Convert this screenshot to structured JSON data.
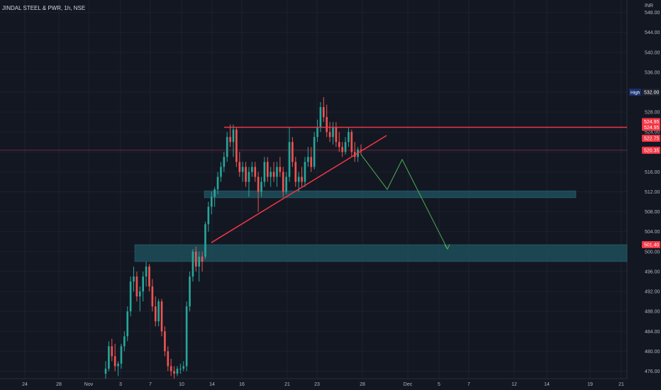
{
  "chart_data": {
    "type": "candlestick",
    "title": "JINDAL STEEL & PWR, 1h, NSE",
    "currency": "INR",
    "ylim": [
      474.5,
      550.5
    ],
    "y_ticks": [
      476,
      480,
      484,
      488,
      492,
      496,
      500,
      504,
      508,
      512,
      516,
      520,
      524,
      528,
      532,
      536,
      540,
      544,
      548
    ],
    "x_ticks": [
      "24",
      "28",
      "Nov",
      "3",
      "7",
      "10",
      "14",
      "16",
      "21",
      "23",
      "28",
      "Dec",
      "5",
      "7",
      "12",
      "14",
      "19",
      "21"
    ],
    "candles": [
      [
        475.5,
        478.0,
        474.5,
        476.5
      ],
      [
        476.5,
        482.0,
        476.0,
        481.0
      ],
      [
        481.0,
        482.5,
        478.0,
        479.0
      ],
      [
        479.0,
        481.5,
        476.0,
        477.0
      ],
      [
        477.0,
        478.0,
        475.0,
        477.5
      ],
      [
        477.5,
        481.5,
        476.5,
        481.0
      ],
      [
        481.0,
        484.0,
        480.0,
        483.0
      ],
      [
        483.0,
        489.0,
        482.0,
        488.0
      ],
      [
        488.0,
        495.0,
        487.0,
        494.0
      ],
      [
        494.0,
        497.0,
        492.0,
        495.0
      ],
      [
        495.0,
        496.0,
        490.0,
        491.0
      ],
      [
        491.0,
        493.0,
        488.0,
        492.0
      ],
      [
        492.0,
        496.0,
        490.0,
        495.0
      ],
      [
        495.0,
        498.0,
        493.0,
        497.0
      ],
      [
        497.0,
        497.5,
        492.0,
        493.0
      ],
      [
        493.0,
        494.5,
        488.0,
        489.0
      ],
      [
        489.0,
        491.0,
        485.0,
        486.0
      ],
      [
        486.0,
        490.5,
        485.0,
        490.0
      ],
      [
        490.0,
        490.5,
        483.0,
        484.0
      ],
      [
        484.0,
        485.0,
        479.0,
        480.0
      ],
      [
        480.0,
        481.0,
        476.0,
        477.0
      ],
      [
        477.0,
        478.5,
        475.0,
        476.0
      ],
      [
        476.0,
        477.0,
        474.5,
        475.5
      ],
      [
        475.5,
        477.0,
        475.0,
        476.5
      ],
      [
        476.5,
        477.5,
        475.5,
        476.5
      ],
      [
        476.5,
        478.0,
        476.0,
        477.0
      ],
      [
        477.0,
        490.0,
        476.0,
        489.0
      ],
      [
        489.0,
        496.0,
        488.0,
        495.0
      ],
      [
        495.0,
        500.5,
        494.0,
        500.0
      ],
      [
        500.0,
        501.0,
        496.0,
        497.0
      ],
      [
        497.0,
        500.0,
        494.0,
        499.0
      ],
      [
        499.0,
        500.0,
        496.0,
        498.0
      ],
      [
        499.0,
        506.0,
        498.5,
        505.5
      ],
      [
        505.5,
        510.0,
        504.0,
        509.0
      ],
      [
        509.0,
        512.0,
        507.5,
        511.0
      ],
      [
        511.0,
        513.0,
        509.0,
        512.5
      ],
      [
        512.5,
        516.0,
        511.5,
        515.0
      ],
      [
        515.0,
        518.0,
        514.0,
        517.0
      ],
      [
        517.0,
        520.0,
        516.0,
        519.0
      ],
      [
        519.0,
        524.0,
        518.0,
        523.0
      ],
      [
        523.0,
        525.5,
        521.0,
        522.0
      ],
      [
        522.0,
        525.5,
        519.0,
        524.5
      ],
      [
        524.5,
        525.0,
        517.0,
        518.0
      ],
      [
        518.0,
        520.0,
        515.0,
        516.0
      ],
      [
        516.0,
        518.0,
        514.0,
        517.0
      ],
      [
        517.0,
        518.0,
        513.0,
        514.0
      ],
      [
        514.0,
        517.0,
        511.0,
        516.0
      ],
      [
        516.0,
        518.0,
        515.0,
        517.0
      ],
      [
        517.0,
        518.0,
        514.0,
        515.0
      ],
      [
        515.0,
        516.0,
        508.0,
        512.0
      ],
      [
        512.0,
        515.0,
        511.0,
        514.0
      ],
      [
        514.0,
        519.0,
        513.0,
        518.0
      ],
      [
        518.0,
        519.0,
        514.0,
        515.0
      ],
      [
        515.0,
        517.0,
        513.0,
        516.0
      ],
      [
        516.0,
        518.0,
        514.0,
        515.0
      ],
      [
        515.0,
        518.0,
        513.0,
        517.0
      ],
      [
        517.0,
        519.0,
        515.0,
        516.0
      ],
      [
        516.0,
        517.0,
        511.0,
        512.0
      ],
      [
        512.0,
        516.0,
        511.5,
        515.0
      ],
      [
        515.0,
        525.0,
        514.0,
        522.0
      ],
      [
        522.0,
        523.0,
        517.0,
        518.0
      ],
      [
        518.0,
        519.0,
        513.0,
        514.0
      ],
      [
        514.0,
        516.0,
        512.0,
        515.0
      ],
      [
        515.0,
        517.0,
        513.0,
        514.0
      ],
      [
        514.0,
        519.0,
        513.0,
        518.0
      ],
      [
        518.0,
        521.0,
        517.0,
        519.0
      ],
      [
        519.0,
        521.0,
        516.0,
        517.0
      ],
      [
        517.0,
        524.0,
        516.5,
        523.0
      ],
      [
        523.0,
        526.5,
        522.0,
        525.0
      ],
      [
        525.0,
        530.0,
        524.0,
        529.0
      ],
      [
        529.0,
        531.0,
        526.0,
        527.0
      ],
      [
        527.0,
        529.5,
        523.0,
        524.0
      ],
      [
        524.0,
        526.0,
        522.0,
        523.0
      ],
      [
        523.0,
        526.0,
        521.5,
        525.0
      ],
      [
        525.0,
        526.0,
        521.0,
        522.0
      ],
      [
        522.0,
        524.0,
        520.0,
        521.0
      ],
      [
        521.0,
        522.0,
        519.0,
        520.0
      ],
      [
        520.0,
        523.0,
        519.5,
        522.0
      ],
      [
        522.0,
        524.95,
        521.0,
        524.0
      ],
      [
        524.0,
        524.5,
        519.0,
        520.0
      ],
      [
        520.0,
        522.0,
        518.0,
        519.0
      ],
      [
        519.0,
        521.0,
        518.0,
        520.5
      ],
      [
        520.5,
        521.5,
        519.5,
        520.35
      ]
    ],
    "price_labels": {
      "high_label": "High",
      "high_value": "532.00",
      "resistance_a": "524.95",
      "resistance_b": "524.95",
      "level_c": "522.75",
      "last_price": "520.35",
      "support_top": "501.40"
    },
    "horizontal_levels": {
      "resistance": 524.95,
      "last_price": 520.35
    },
    "zones": [
      {
        "name": "upper-zone",
        "low": 510.8,
        "high": 512.2
      },
      {
        "name": "lower-zone",
        "low": 498.0,
        "high": 501.4
      }
    ],
    "trendline": {
      "start_price": 501.8,
      "end_price": 523.3
    },
    "projection_path": [
      519.5,
      512.5,
      518.5,
      500.5
    ],
    "colors": {
      "up": "#26a69a",
      "down": "#ef5350",
      "resistance": "#f23645",
      "projection": "#4caf50",
      "zone": "#1e4e5a",
      "background": "#131722",
      "grid": "#1c2130",
      "axis_text": "#b2b5be"
    }
  }
}
